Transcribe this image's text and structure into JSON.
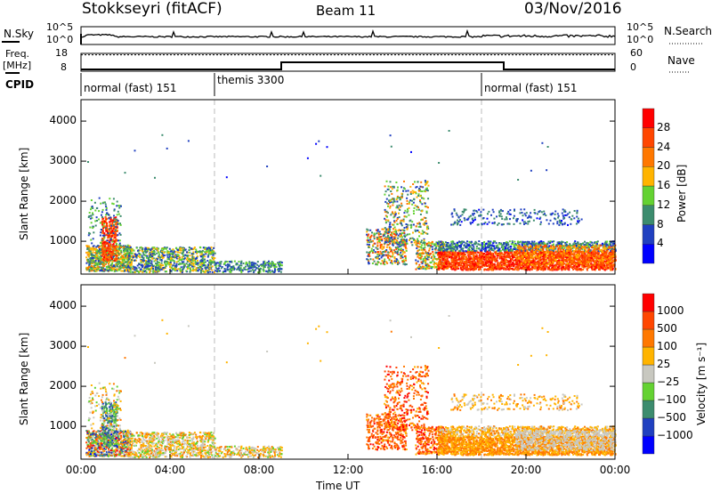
{
  "header": {
    "station": "Stokkseyri (fitACF)",
    "beam": "Beam 11",
    "date": "03/Nov/2016"
  },
  "nsky": {
    "label": "N.Sky",
    "right_label": "N.Search",
    "ticks": [
      "10^5",
      "10^0"
    ]
  },
  "freq": {
    "label1": "Freq.",
    "label2": "[MHz]",
    "ticks": [
      "18",
      "8"
    ],
    "right_ticks": [
      "60",
      "0"
    ],
    "right_label": "Nave",
    "freq_mhz": [
      [
        0,
        9
      ],
      [
        9,
        13
      ],
      [
        19,
        9
      ],
      [
        24,
        9
      ]
    ],
    "nave": 40
  },
  "cpid": {
    "label": "CPID",
    "segments": [
      {
        "start": 0,
        "name": "normal (fast) 151"
      },
      {
        "start": 6,
        "name": "themis 3300"
      },
      {
        "start": 18,
        "name": "normal (fast) 151"
      }
    ]
  },
  "chart_data": {
    "type": "heatmap",
    "xlabel": "Time UT",
    "x_ticks": [
      "00:00",
      "04:00",
      "08:00",
      "12:00",
      "16:00",
      "20:00",
      "00:00"
    ],
    "xlim_hours": [
      0,
      24
    ],
    "ylabel": "Slant Range [km]",
    "y_ticks": [
      "1000",
      "2000",
      "3000",
      "4000"
    ],
    "ylim_km": [
      180,
      4535
    ],
    "power": {
      "label": "Power [dB]",
      "ticks": [
        "28",
        "24",
        "20",
        "16",
        "12",
        "8",
        "4"
      ],
      "colors": [
        "#0000ff",
        "#2040c0",
        "#3c8c6e",
        "#64d232",
        "#ffb400",
        "#ff7800",
        "#ff4600",
        "#ff0000"
      ],
      "range": [
        0,
        32
      ]
    },
    "velocity": {
      "label": "Velocity [m s⁻¹]",
      "ticks": [
        "1000",
        "500",
        "100",
        "25",
        "−25",
        "−100",
        "−500",
        "−1000"
      ],
      "colors": [
        "#0000ff",
        "#2040c0",
        "#3c8c6e",
        "#64d232",
        "#c8c8c0",
        "#ffb400",
        "#ff7800",
        "#ff4600",
        "#ff0000"
      ]
    },
    "echo_regions": [
      {
        "t": [
          0.2,
          2.2
        ],
        "r": [
          250,
          900
        ],
        "p": [
          6,
          22
        ],
        "v": [
          0,
          8
        ],
        "n": 700
      },
      {
        "t": [
          0.9,
          1.6
        ],
        "r": [
          500,
          1600
        ],
        "p": [
          20,
          31
        ],
        "v": [
          1,
          4
        ],
        "n": 300
      },
      {
        "t": [
          0.3,
          1.8
        ],
        "r": [
          900,
          2100
        ],
        "p": [
          4,
          16
        ],
        "v": [
          3,
          6
        ],
        "n": 120
      },
      {
        "t": [
          2.0,
          6.0
        ],
        "r": [
          220,
          850
        ],
        "p": [
          4,
          20
        ],
        "v": [
          3,
          6
        ],
        "n": 800
      },
      {
        "t": [
          6.0,
          9.0
        ],
        "r": [
          220,
          500
        ],
        "p": [
          4,
          16
        ],
        "v": [
          3,
          6
        ],
        "n": 250
      },
      {
        "t": [
          12.8,
          14.6
        ],
        "r": [
          400,
          1300
        ],
        "p": [
          4,
          28
        ],
        "v": [
          5,
          8
        ],
        "n": 350
      },
      {
        "t": [
          13.6,
          15.6
        ],
        "r": [
          900,
          2500
        ],
        "p": [
          4,
          24
        ],
        "v": [
          5,
          8
        ],
        "n": 350
      },
      {
        "t": [
          15.0,
          16.3
        ],
        "r": [
          300,
          1000
        ],
        "p": [
          6,
          26
        ],
        "v": [
          5,
          8
        ],
        "n": 250
      },
      {
        "t": [
          16.0,
          24.0
        ],
        "r": [
          280,
          750
        ],
        "p": [
          22,
          31
        ],
        "v": [
          5,
          6
        ],
        "n": 2200
      },
      {
        "t": [
          16.0,
          24.0
        ],
        "r": [
          750,
          1000
        ],
        "p": [
          3,
          14
        ],
        "v": [
          4,
          6
        ],
        "n": 700
      },
      {
        "t": [
          19.5,
          24.0
        ],
        "r": [
          400,
          900
        ],
        "p": [
          16,
          28
        ],
        "v": [
          4,
          4
        ],
        "n": 500
      },
      {
        "t": [
          16.5,
          22.5
        ],
        "r": [
          1400,
          1800
        ],
        "p": [
          3,
          12
        ],
        "v": [
          4,
          6
        ],
        "n": 220
      },
      {
        "t": [
          0,
          24
        ],
        "r": [
          2500,
          3800
        ],
        "p": [
          3,
          10
        ],
        "v": [
          4,
          6
        ],
        "n": 25
      }
    ]
  }
}
